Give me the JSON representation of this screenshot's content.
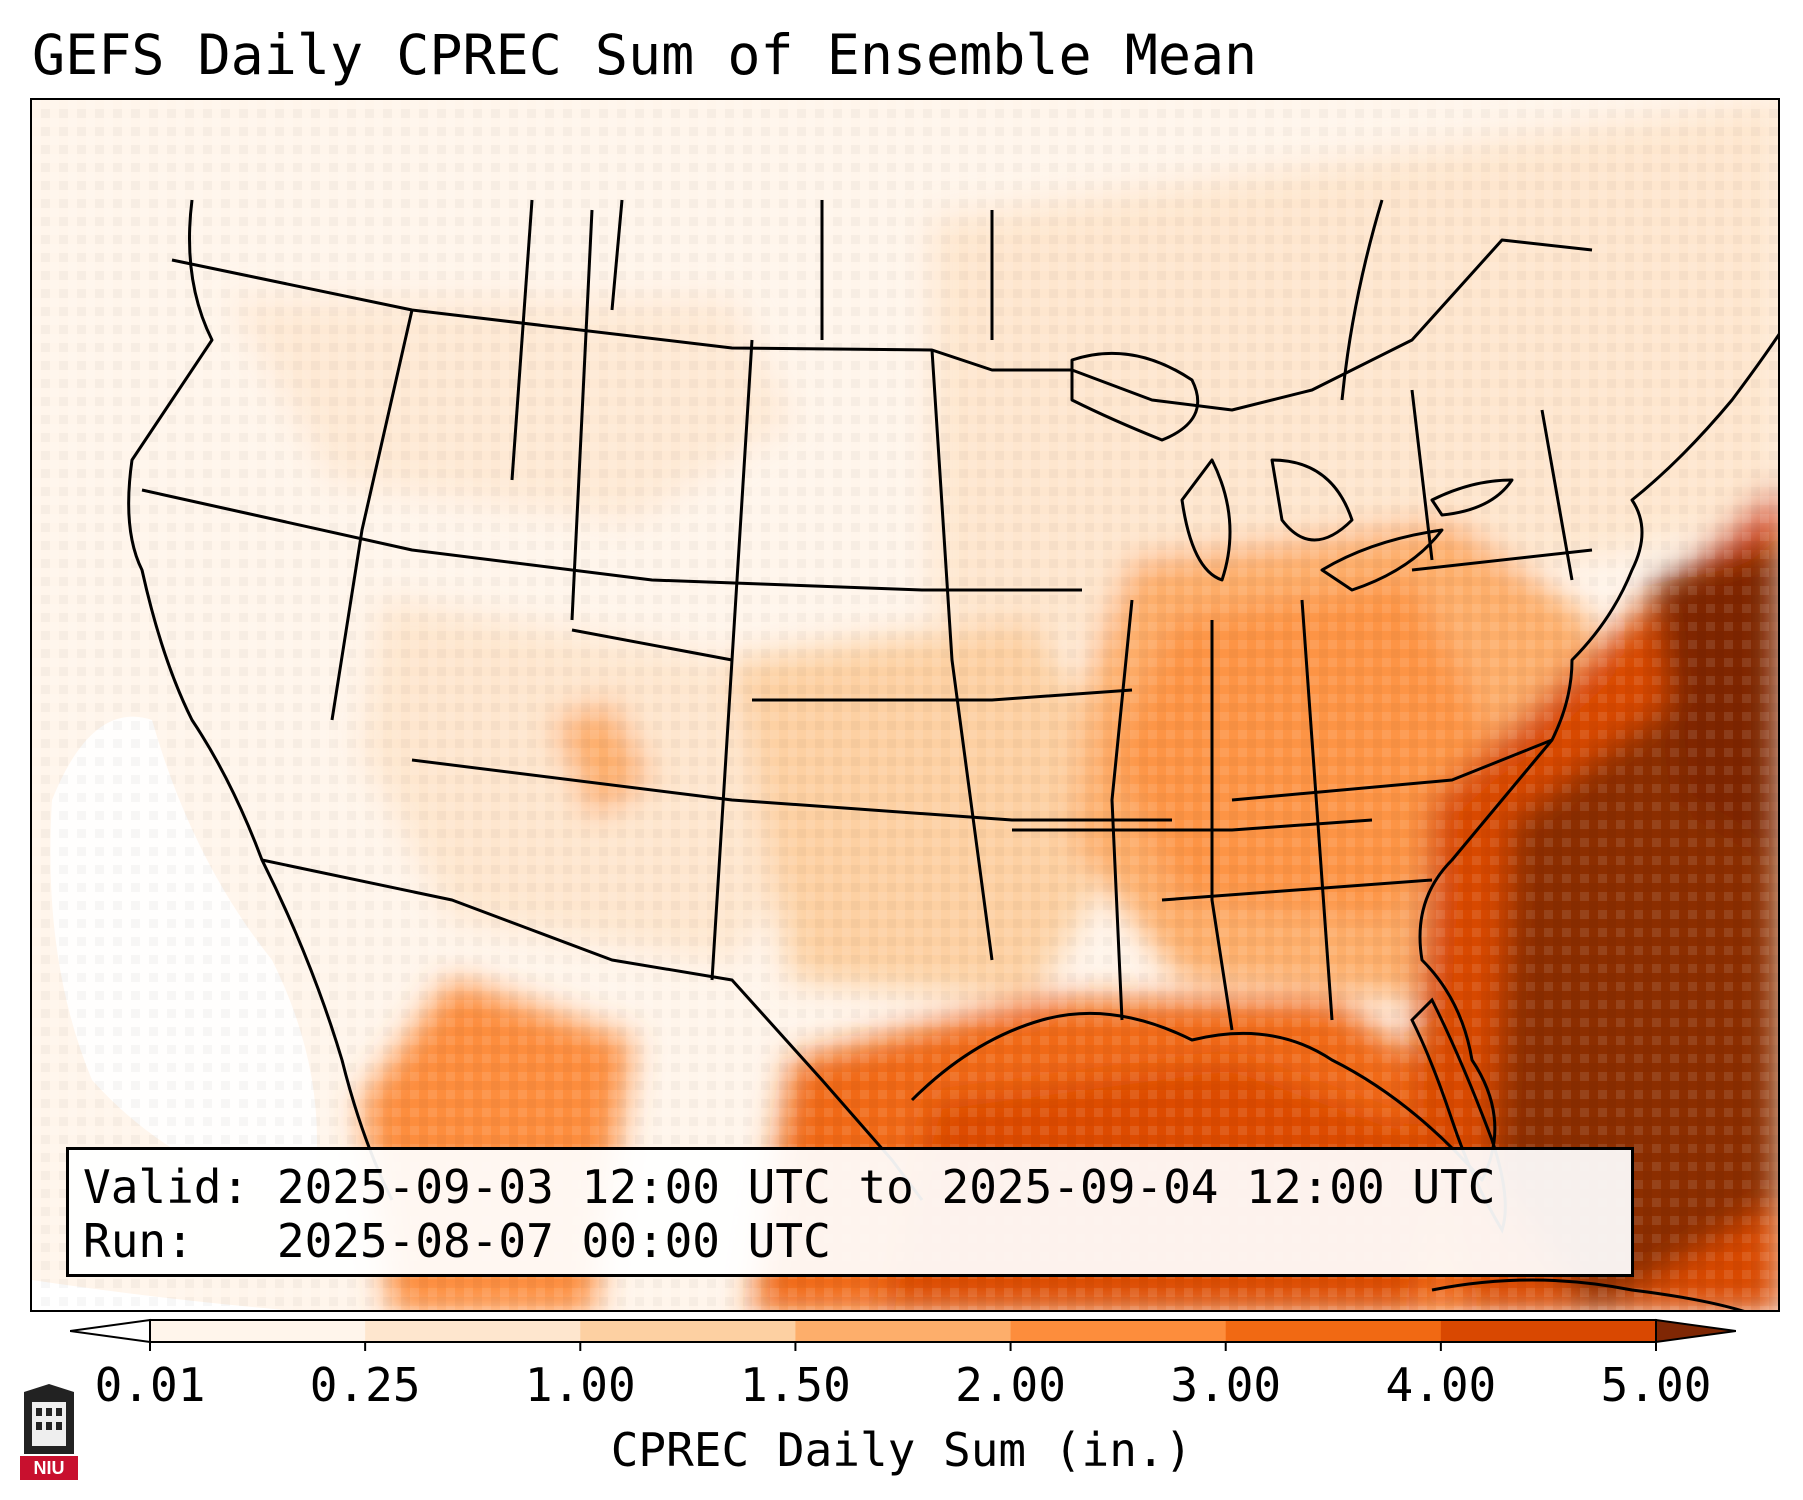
{
  "title": "GEFS Daily CPREC Sum of Ensemble Mean",
  "info": {
    "valid_label": "Valid:",
    "valid_value": "2025-09-03 12:00 UTC to 2025-09-04 12:00 UTC",
    "run_label": "Run:",
    "run_value": "2025-08-07 00:00 UTC"
  },
  "colorbar": {
    "label": "CPREC Daily Sum (in.)",
    "ticks": [
      "0.01",
      "0.25",
      "1.00",
      "1.50",
      "2.00",
      "3.00",
      "4.00",
      "5.00"
    ],
    "colors": [
      "#fff5eb",
      "#fee6ce",
      "#fdd0a2",
      "#fdae6b",
      "#fd8d3c",
      "#f16913",
      "#d94801",
      "#8c2d04"
    ],
    "under_color": "#ffffff",
    "over_color": "#7f2704"
  },
  "logo": {
    "text": "NIU",
    "color": "#c8102e"
  }
}
